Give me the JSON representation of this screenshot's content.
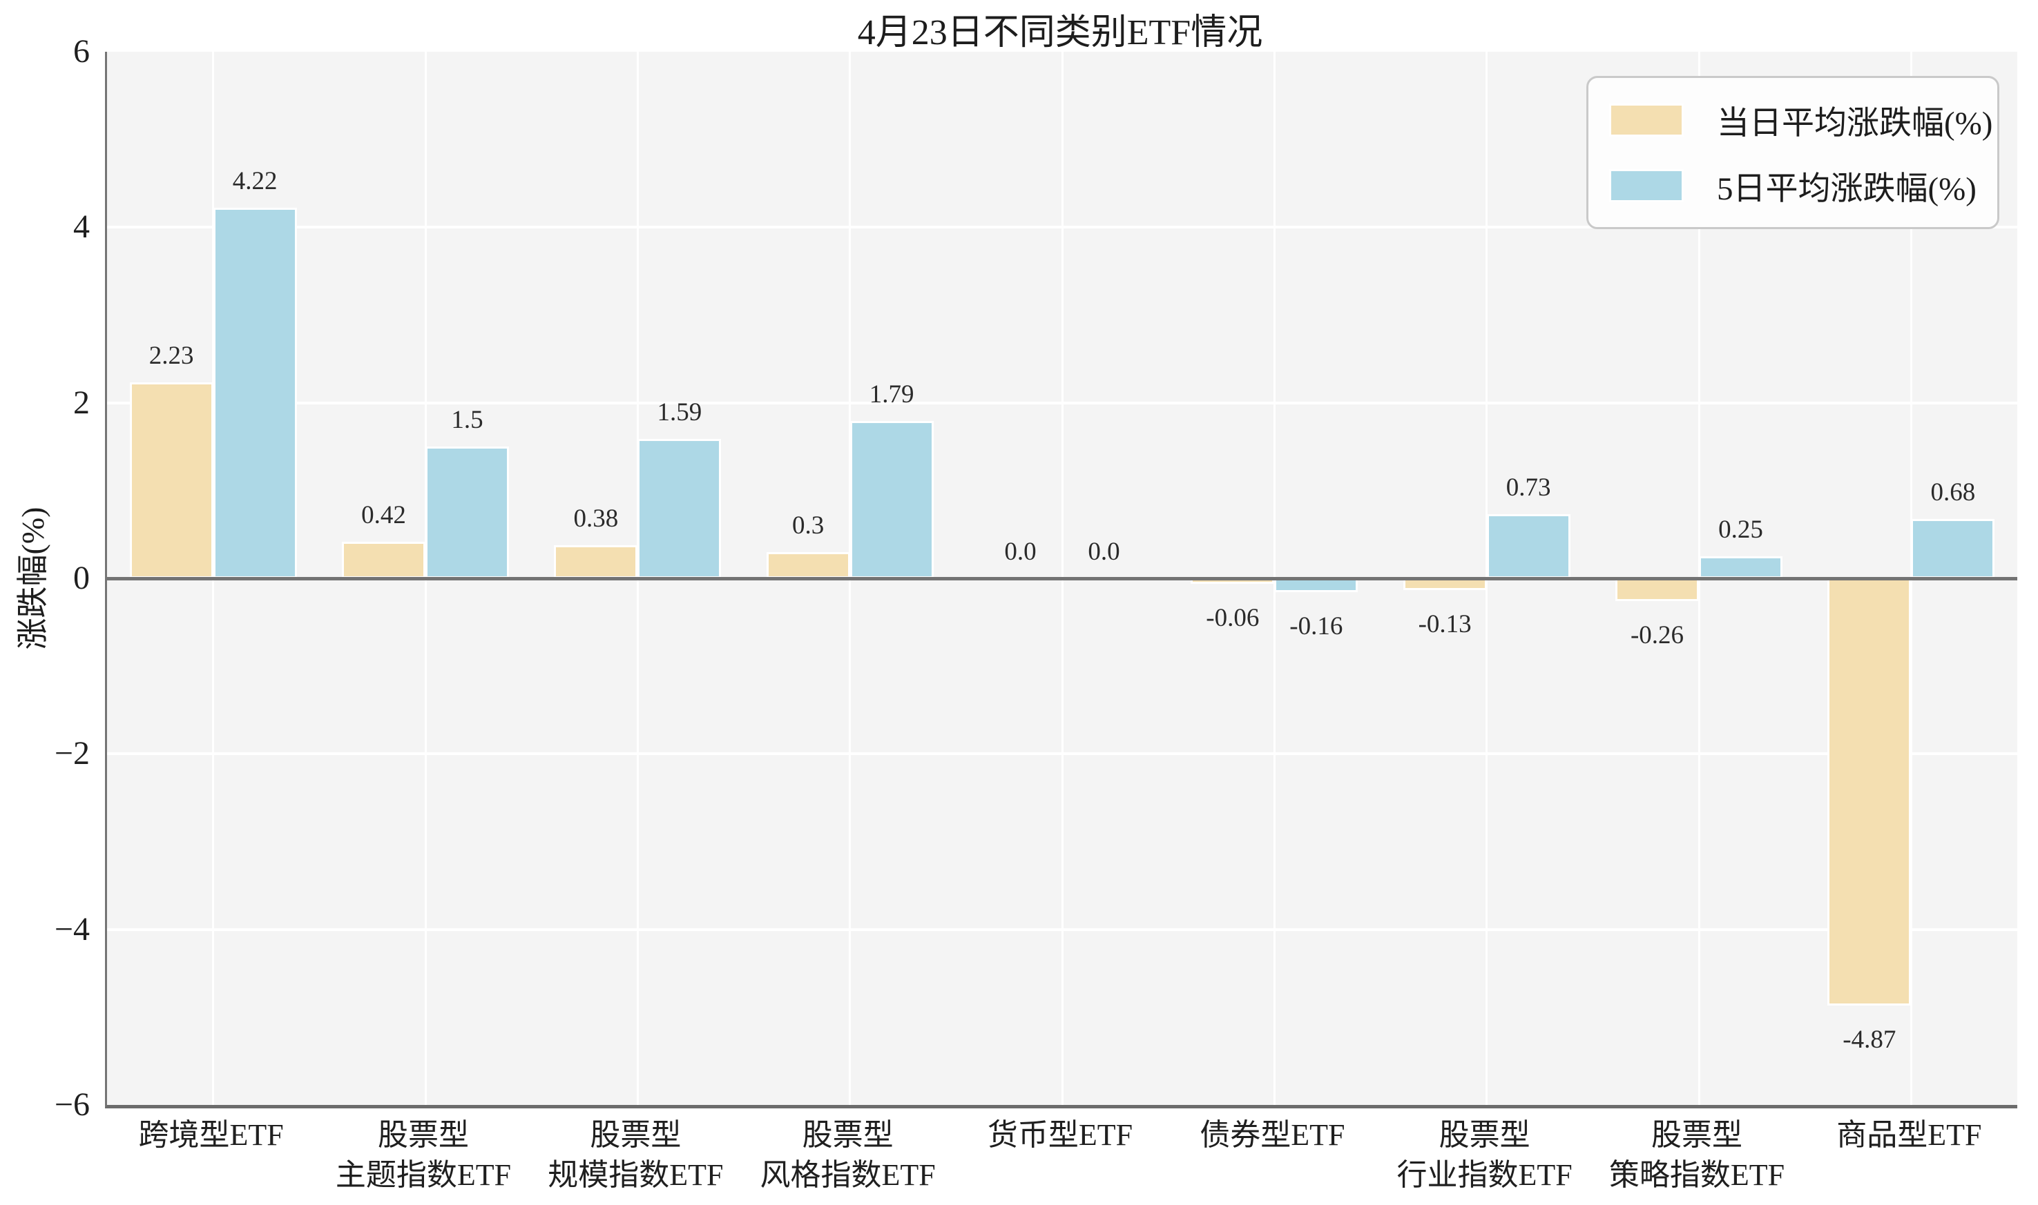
{
  "title": "4月23日不同类别ETF情况",
  "ylabel": "涨跌幅(%)",
  "colors": {
    "series1": "#F4DFB1",
    "series2": "#ADD8E6",
    "plot_background": "#f4f4f4",
    "grid": "#ffffff",
    "zero_line": "#737373",
    "spine": "#6b6b6b",
    "text": "#262626",
    "legend_border": "#c9c9c9"
  },
  "chart_data": {
    "type": "bar",
    "title": "4月23日不同类别ETF情况",
    "xlabel": "",
    "ylabel": "涨跌幅(%)",
    "ylim": [
      -6,
      6
    ],
    "yticks": [
      6,
      4,
      2,
      0,
      -2,
      -4,
      -6
    ],
    "ytick_labels": [
      "6",
      "4",
      "2",
      "0",
      "−2",
      "−4",
      "−6"
    ],
    "grid": true,
    "legend_position": "upper right",
    "categories": [
      "跨境型ETF",
      "股票型\n主题指数ETF",
      "股票型\n规模指数ETF",
      "股票型\n风格指数ETF",
      "货币型ETF",
      "债券型ETF",
      "股票型\n行业指数ETF",
      "股票型\n策略指数ETF",
      "商品型ETF"
    ],
    "series": [
      {
        "name": "当日平均涨跌幅(%)",
        "color": "#F4DFB1",
        "values": [
          2.23,
          0.42,
          0.38,
          0.3,
          0.0,
          -0.06,
          -0.13,
          -0.26,
          -4.87
        ],
        "labels": [
          "2.23",
          "0.42",
          "0.38",
          "0.3",
          "0.0",
          "-0.06",
          "-0.13",
          "-0.26",
          "-4.87"
        ]
      },
      {
        "name": "5日平均涨跌幅(%)",
        "color": "#ADD8E6",
        "values": [
          4.22,
          1.5,
          1.59,
          1.79,
          0.0,
          -0.16,
          0.73,
          0.25,
          0.68
        ],
        "labels": [
          "4.22",
          "1.5",
          "1.59",
          "1.79",
          "0.0",
          "-0.16",
          "0.73",
          "0.25",
          "0.68"
        ]
      }
    ]
  }
}
